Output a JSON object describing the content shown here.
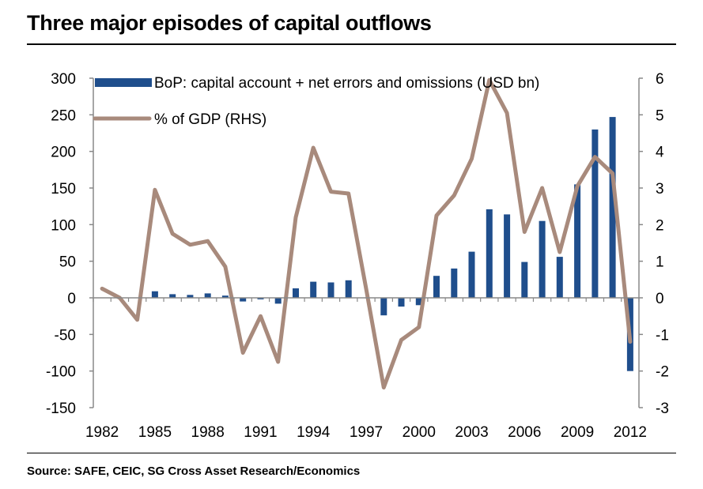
{
  "title": "Three major episodes of capital outflows",
  "source": "Source: SAFE, CEIC, SG Cross Asset Research/Economics",
  "colors": {
    "bar": "#1f4e8c",
    "line": "#a88a7c",
    "axis": "#888888"
  },
  "chart_data": {
    "type": "bar",
    "x": [
      1982,
      1983,
      1984,
      1985,
      1986,
      1987,
      1988,
      1989,
      1990,
      1991,
      1992,
      1993,
      1994,
      1995,
      1996,
      1997,
      1998,
      1999,
      2000,
      2001,
      2002,
      2003,
      2004,
      2005,
      2006,
      2007,
      2008,
      2009,
      2010,
      2011,
      2012
    ],
    "x_tick_labels": [
      "1982",
      "1985",
      "1988",
      "1991",
      "1994",
      "1997",
      "2000",
      "2003",
      "2006",
      "2009",
      "2012"
    ],
    "ylim": [
      -150,
      300
    ],
    "y2lim": [
      -3,
      6
    ],
    "y_tick_labels": [
      "300",
      "250",
      "200",
      "150",
      "100",
      "50",
      "0",
      "-50",
      "-100",
      "-150"
    ],
    "y2_tick_labels": [
      "6",
      "5",
      "4",
      "3",
      "2",
      "1",
      "0",
      "-1",
      "-2",
      "-3"
    ],
    "grid": false,
    "legend_position": "top",
    "series": [
      {
        "name": "BoP: capital account + net errors and omissions (USD bn)",
        "type": "bar",
        "axis": "left",
        "values": [
          null,
          null,
          null,
          9,
          5,
          4,
          6,
          3,
          -5,
          -2,
          -8,
          13,
          22,
          21,
          24,
          null,
          -24,
          -12,
          -10,
          30,
          40,
          63,
          121,
          114,
          49,
          105,
          56,
          155,
          230,
          247,
          -100
        ]
      },
      {
        "name": "% of GDP (RHS)",
        "type": "line",
        "axis": "right",
        "values": [
          0.25,
          0.0,
          -0.6,
          2.95,
          1.75,
          1.45,
          1.55,
          0.85,
          -1.5,
          -0.5,
          -1.75,
          2.2,
          4.1,
          2.9,
          2.85,
          0.25,
          -2.45,
          -1.15,
          -0.8,
          2.25,
          2.8,
          3.8,
          5.95,
          5.05,
          1.8,
          3.0,
          1.25,
          3.05,
          3.85,
          3.4,
          -1.2
        ]
      }
    ]
  }
}
